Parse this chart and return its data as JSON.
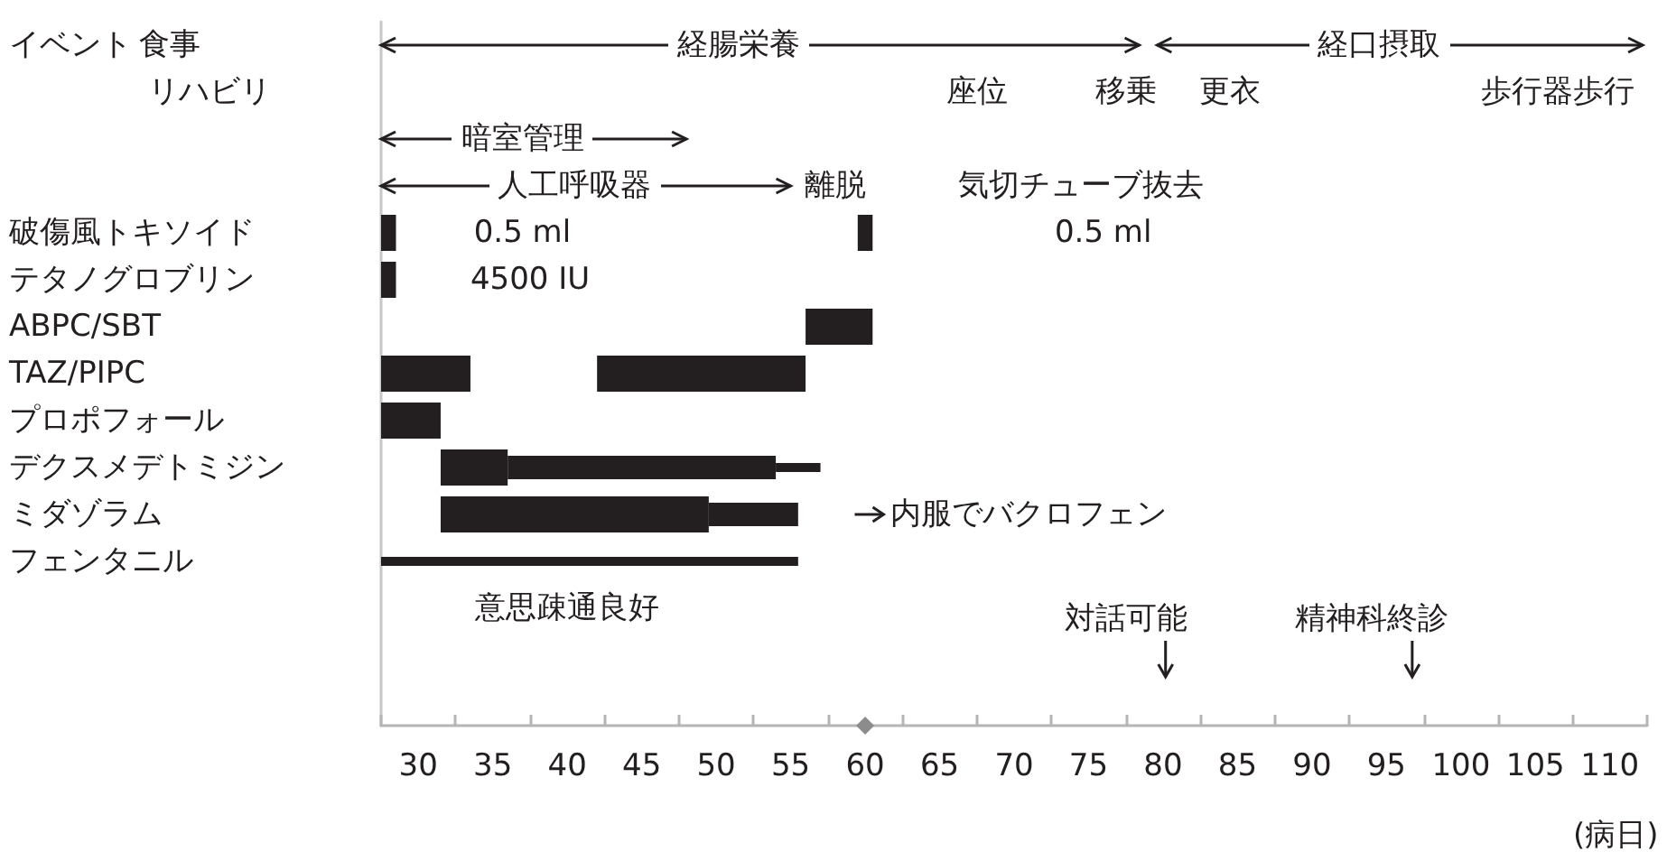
{
  "chart_data": {
    "type": "bar",
    "orientation": "horizontal",
    "ylabel": "イベント",
    "xlabel": "(病日)",
    "categories": [
      null,
      null,
      null,
      null,
      "破傷風トキソイド",
      "テタノグロブリン",
      "ABPC/SBT",
      "TAZ/PIPC",
      "プロポフォール",
      "デクスメデトミジン",
      "ミダゾラム",
      "フェンタニル",
      null,
      null,
      null
    ],
    "series": [
      {
        "color": "#231f20",
        "base": [
          null,
          null,
          null,
          null,
          27.5,
          27.5,
          56,
          27.5,
          27.5,
          31.5,
          31.5,
          null,
          null,
          null,
          null
        ],
        "values": [
          null,
          null,
          null,
          null,
          1,
          1,
          4.5,
          6,
          4,
          4.5,
          18,
          null,
          null,
          null,
          null
        ]
      },
      {
        "color": "#231f20",
        "base": [
          null,
          null,
          null,
          null,
          59.5,
          null,
          null,
          42,
          null,
          null,
          null,
          null,
          null,
          null,
          null
        ],
        "values": [
          null,
          null,
          null,
          null,
          1,
          null,
          null,
          14,
          null,
          null,
          null,
          null,
          null,
          null,
          null
        ]
      },
      {
        "color": "#231f20",
        "base": [
          null,
          null,
          null,
          null,
          null,
          null,
          null,
          null,
          null,
          36,
          49.5,
          null,
          null,
          null,
          null
        ],
        "values": [
          null,
          null,
          null,
          null,
          null,
          null,
          null,
          null,
          null,
          18,
          6,
          null,
          null,
          null,
          null
        ]
      },
      {
        "color": "#231f20",
        "base": [
          null,
          null,
          null,
          null,
          null,
          null,
          null,
          null,
          null,
          54,
          null,
          27.5,
          null,
          null,
          null
        ],
        "values": [
          null,
          null,
          null,
          null,
          null,
          null,
          null,
          null,
          null,
          3,
          null,
          28,
          null,
          null,
          null
        ]
      }
    ],
    "xlim": [
      27.5,
      112.5
    ],
    "xticks": [
      {
        "value": 27.5,
        "label": null
      },
      30,
      {
        "value": 32.5,
        "label": null
      },
      35,
      {
        "value": 37.5,
        "label": null
      },
      40,
      {
        "value": 42.5,
        "label": null
      },
      45,
      {
        "value": 47.5,
        "label": null
      },
      50,
      {
        "value": 52.5,
        "label": null
      },
      55,
      {
        "value": 57.5,
        "label": null
      },
      60,
      {
        "value": 62.5,
        "label": null
      },
      65,
      {
        "value": 67.5,
        "label": null
      },
      70,
      {
        "value": 72.5,
        "label": null
      },
      75,
      {
        "value": 77.5,
        "label": null
      },
      80,
      {
        "value": 82.5,
        "label": null
      },
      85,
      {
        "value": 87.5,
        "label": null
      },
      90,
      {
        "value": 92.5,
        "label": null
      },
      95,
      {
        "value": 97.5,
        "label": null
      },
      100,
      {
        "value": 102.5,
        "label": null
      },
      105,
      {
        "value": 107.5,
        "label": null
      },
      110,
      {
        "value": 112.5,
        "label": null
      }
    ],
    "annotations": [
      "食事",
      "リハビリ",
      "経腸栄養",
      "経口摂取",
      "座位",
      "移乗",
      "更衣",
      "歩行器歩行",
      "暗室管理",
      "人工呼吸器",
      "離脱",
      "気切チューブ抜去",
      "0.5 ml",
      "0.5 ml",
      "4500 IU",
      "内服でバクロフェン",
      "意思疎通良好",
      "対話可能",
      "精神科終診"
    ]
  }
}
